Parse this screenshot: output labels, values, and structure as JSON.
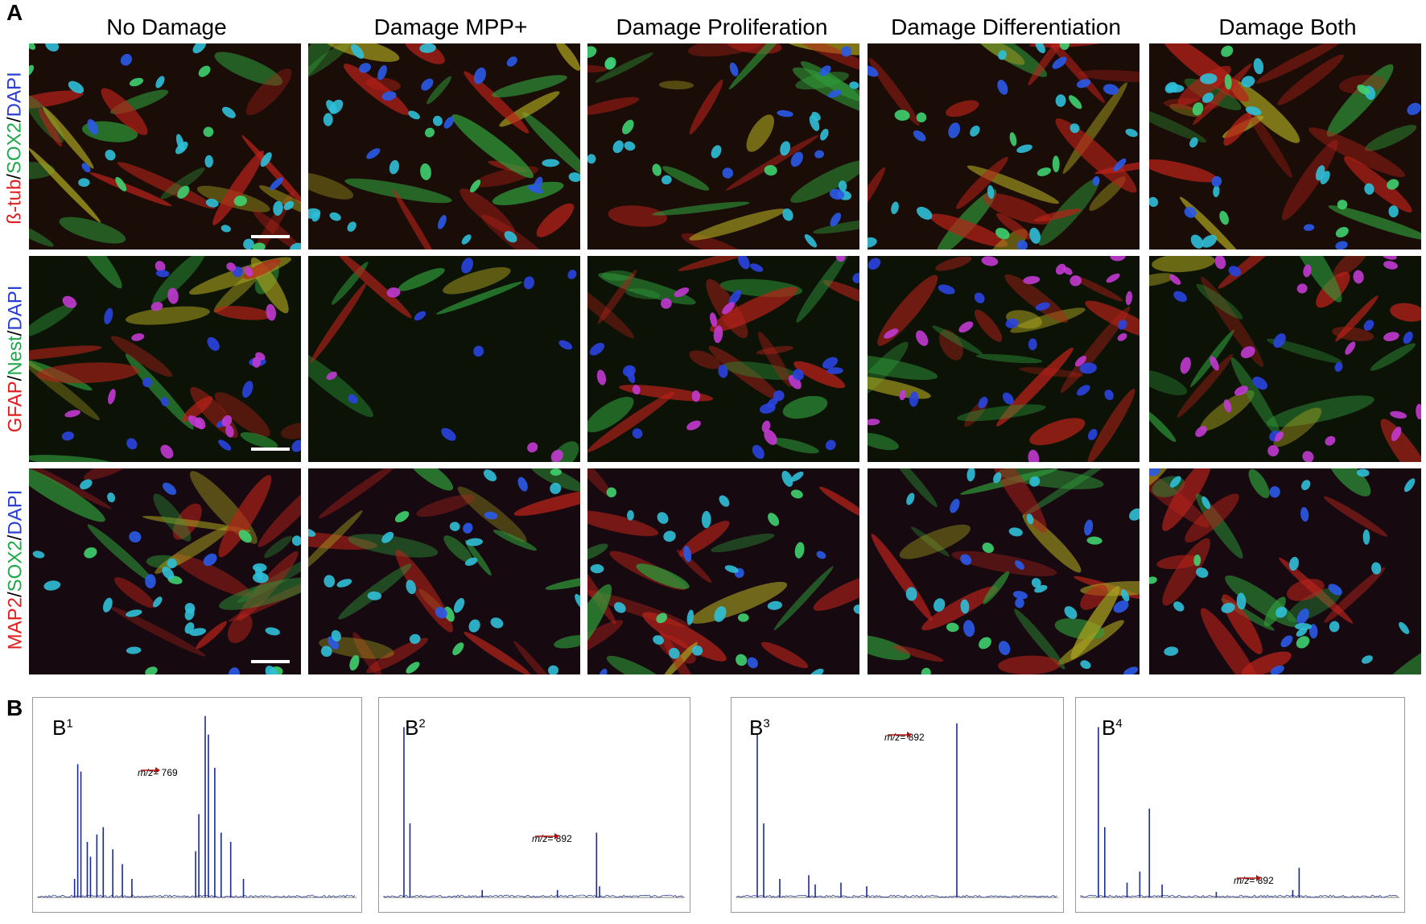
{
  "panel_a": {
    "letter": "A",
    "columns": [
      "No Damage",
      "Damage MPP+",
      "Damage Proliferation",
      "Damage Differentiation",
      "Damage Both"
    ],
    "rows": [
      {
        "stains": [
          {
            "text": "ß-tub",
            "color": "#e02020"
          },
          {
            "text": "SOX2",
            "color": "#1fa84a"
          },
          {
            "text": "DAPI",
            "color": "#2a3fd0"
          }
        ]
      },
      {
        "stains": [
          {
            "text": "GFAP",
            "color": "#e02020"
          },
          {
            "text": "Nest",
            "color": "#1fa84a"
          },
          {
            "text": "DAPI",
            "color": "#2a3fd0"
          }
        ]
      },
      {
        "stains": [
          {
            "text": "MAP2",
            "color": "#e02020"
          },
          {
            "text": "SOX2",
            "color": "#1fa84a"
          },
          {
            "text": "DAPI",
            "color": "#2a3fd0"
          }
        ]
      }
    ]
  },
  "panel_b": {
    "letter": "B",
    "spectra": [
      {
        "label": "B",
        "sup": "1",
        "mz_prefix": "m/z",
        "mz_value": "= 769"
      },
      {
        "label": "B",
        "sup": "2",
        "mz_prefix": "m/z",
        "mz_value": "= 892"
      },
      {
        "label": "B",
        "sup": "3",
        "mz_prefix": "m/z",
        "mz_value": "= 892"
      },
      {
        "label": "B",
        "sup": "4",
        "mz_prefix": "m/z",
        "mz_value": "= 892"
      }
    ]
  },
  "colors": {
    "red": "#e02020",
    "green": "#1fa84a",
    "blue": "#2a3fd0",
    "spectrum": "#1c2a8c",
    "arrow": "#b01010"
  }
}
